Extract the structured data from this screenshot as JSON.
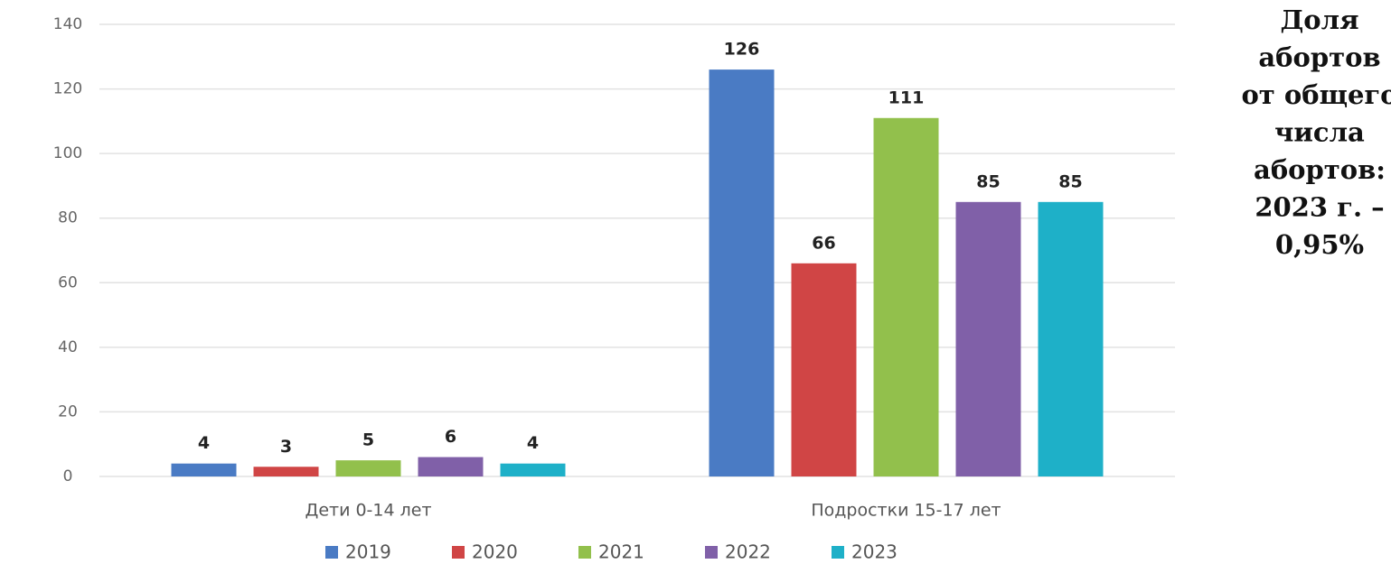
{
  "chart_data": {
    "type": "bar",
    "categories": [
      "Дети 0-14 лет",
      "Подростки  15-17 лет"
    ],
    "series": [
      {
        "name": "2019",
        "color": "#4a7bc4",
        "values": [
          4,
          126
        ]
      },
      {
        "name": "2020",
        "color": "#d04545",
        "values": [
          3,
          66
        ]
      },
      {
        "name": "2021",
        "color": "#92c04c",
        "values": [
          5,
          111
        ]
      },
      {
        "name": "2022",
        "color": "#8060a8",
        "values": [
          6,
          85
        ]
      },
      {
        "name": "2023",
        "color": "#1eb0c8",
        "values": [
          4,
          85
        ]
      }
    ],
    "ylim": [
      0,
      140
    ],
    "yticks": [
      0,
      20,
      40,
      60,
      80,
      100,
      120,
      140
    ],
    "grid": true,
    "legend": "bottom",
    "annotation": [
      "Доля",
      "абортов",
      "от общего",
      "числа",
      "абортов:",
      "2023 г. –",
      "0,95%"
    ]
  }
}
